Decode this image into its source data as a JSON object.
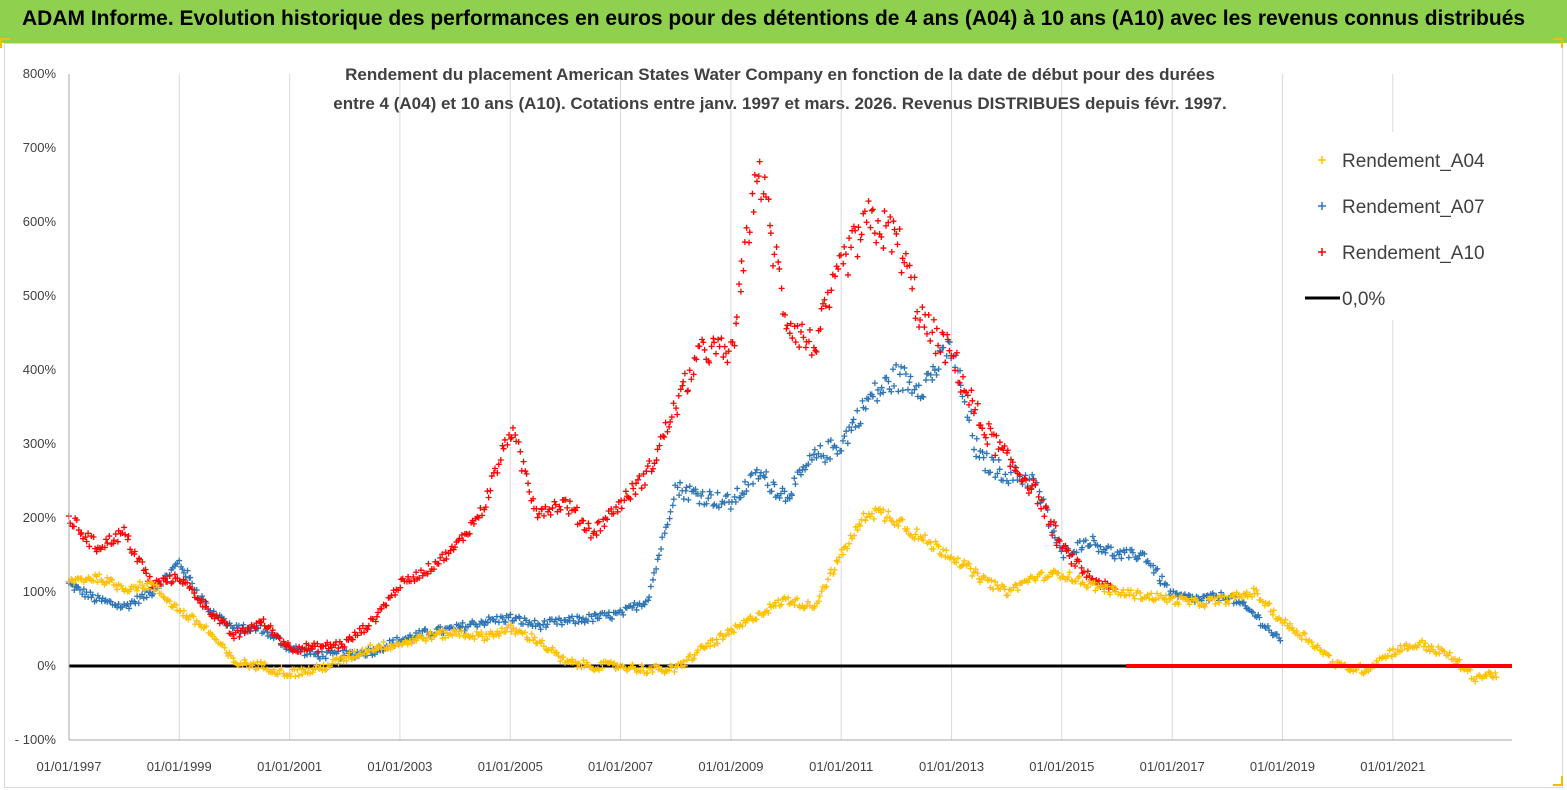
{
  "banner": {
    "title": "ADAM Informe. Evolution historique des performances en euros pour des détentions de 4 ans (A04) à 10 ans (A10) avec les revenus connus distribués"
  },
  "chart_data": {
    "type": "scatter",
    "title_line1": "Rendement du placement American States Water Company en fonction de la date de début pour des durées",
    "title_line2": "entre 4 (A04) et 10 ans (A10). Cotations entre janv. 1997 et mars. 2026. Revenus DISTRIBUES depuis févr. 1997.",
    "xlabel": "",
    "ylabel": "",
    "x_range": [
      "01/01/1997",
      "2023-03-01"
    ],
    "ylim": [
      -100,
      800
    ],
    "y_ticks": [
      -100,
      0,
      100,
      200,
      300,
      400,
      500,
      600,
      700,
      800
    ],
    "y_tick_labels": [
      "- 100%",
      "0%",
      "100%",
      "200%",
      "300%",
      "400%",
      "500%",
      "600%",
      "700%",
      "800%"
    ],
    "x_ticks": [
      "1997-01-01",
      "1999-01-01",
      "2001-01-01",
      "2003-01-01",
      "2005-01-01",
      "2007-01-01",
      "2009-01-01",
      "2011-01-01",
      "2013-01-01",
      "2015-01-01",
      "2017-01-01",
      "2019-01-01",
      "2021-01-01"
    ],
    "x_tick_labels": [
      "01/01/1997",
      "01/01/1999",
      "01/01/2001",
      "01/01/2003",
      "01/01/2005",
      "01/01/2007",
      "01/01/2009",
      "01/01/2011",
      "01/01/2013",
      "01/01/2015",
      "01/01/2017",
      "01/01/2019",
      "01/01/2021"
    ],
    "grid": "vertical",
    "legend_position": "top-right",
    "series": [
      {
        "name": "Rendement_A04",
        "color": "#ffc000",
        "marker": "plus",
        "x": [
          "1997-01-01",
          "1997-07-01",
          "1998-01-01",
          "1998-07-01",
          "1999-01-01",
          "1999-07-01",
          "2000-01-01",
          "2000-07-01",
          "2001-01-01",
          "2001-07-01",
          "2002-01-01",
          "2002-07-01",
          "2003-01-01",
          "2003-07-01",
          "2004-01-01",
          "2004-07-01",
          "2005-01-01",
          "2005-07-01",
          "2006-01-01",
          "2006-07-01",
          "2007-01-01",
          "2007-07-01",
          "2008-01-01",
          "2008-07-01",
          "2009-01-01",
          "2009-07-01",
          "2010-01-01",
          "2010-07-01",
          "2011-01-01",
          "2011-07-01",
          "2012-01-01",
          "2012-07-01",
          "2013-01-01",
          "2013-07-01",
          "2014-01-01",
          "2014-07-01",
          "2015-01-01",
          "2015-07-01",
          "2016-01-01",
          "2016-07-01",
          "2017-01-01",
          "2017-07-01",
          "2018-01-01",
          "2018-07-01",
          "2019-01-01",
          "2019-07-01",
          "2020-01-01",
          "2020-07-01",
          "2021-01-01",
          "2021-07-01",
          "2022-01-01",
          "2022-07-01",
          "2022-12-01"
        ],
        "y": [
          115,
          120,
          105,
          110,
          75,
          50,
          5,
          0,
          -10,
          -5,
          10,
          25,
          30,
          40,
          45,
          40,
          50,
          35,
          5,
          0,
          0,
          -5,
          -5,
          25,
          45,
          70,
          90,
          80,
          150,
          210,
          200,
          170,
          150,
          120,
          100,
          120,
          125,
          110,
          100,
          95,
          90,
          85,
          90,
          100,
          60,
          35,
          0,
          -5,
          20,
          30,
          15,
          -15,
          -10
        ]
      },
      {
        "name": "Rendement_A07",
        "color": "#2e75b6",
        "marker": "plus",
        "x": [
          "1997-01-01",
          "1997-07-01",
          "1998-01-01",
          "1998-07-01",
          "1999-01-01",
          "1999-07-01",
          "2000-01-01",
          "2000-07-01",
          "2001-01-01",
          "2001-07-01",
          "2002-01-01",
          "2002-07-01",
          "2003-01-01",
          "2003-07-01",
          "2004-01-01",
          "2004-07-01",
          "2005-01-01",
          "2005-07-01",
          "2006-01-01",
          "2006-07-01",
          "2007-01-01",
          "2007-07-01",
          "2008-01-01",
          "2008-07-01",
          "2009-01-01",
          "2009-07-01",
          "2010-01-01",
          "2010-07-01",
          "2011-01-01",
          "2011-07-01",
          "2012-01-01",
          "2012-07-01",
          "2013-01-01",
          "2013-07-01",
          "2014-01-01",
          "2014-07-01",
          "2015-01-01",
          "2015-07-01",
          "2016-01-01",
          "2016-07-01",
          "2017-01-01",
          "2017-07-01",
          "2018-01-01",
          "2018-07-01",
          "2019-01-01"
        ],
        "y": [
          110,
          90,
          80,
          100,
          140,
          80,
          50,
          50,
          25,
          15,
          15,
          20,
          35,
          45,
          50,
          60,
          65,
          55,
          60,
          65,
          70,
          90,
          240,
          230,
          220,
          260,
          230,
          280,
          300,
          360,
          390,
          380,
          430,
          280,
          260,
          250,
          150,
          170,
          150,
          150,
          95,
          90,
          95,
          70,
          30
        ]
      },
      {
        "name": "Rendement_A10",
        "color": "#ff0000",
        "marker": "plus",
        "x": [
          "1997-01-01",
          "1997-07-01",
          "1998-01-01",
          "1998-07-01",
          "1999-01-01",
          "1999-07-01",
          "2000-01-01",
          "2000-07-01",
          "2001-01-01",
          "2001-07-01",
          "2002-01-01",
          "2002-07-01",
          "2003-01-01",
          "2003-07-01",
          "2004-01-01",
          "2004-07-01",
          "2005-01-01",
          "2005-07-01",
          "2006-01-01",
          "2006-07-01",
          "2007-01-01",
          "2007-07-01",
          "2008-01-01",
          "2008-07-01",
          "2009-01-01",
          "2009-07-01",
          "2010-01-01",
          "2010-07-01",
          "2011-01-01",
          "2011-07-01",
          "2012-01-01",
          "2012-07-01",
          "2013-01-01",
          "2013-07-01",
          "2014-01-01",
          "2014-07-01",
          "2015-01-01",
          "2015-07-01",
          "2016-01-01"
        ],
        "y": [
          200,
          160,
          180,
          110,
          120,
          80,
          40,
          60,
          25,
          25,
          30,
          60,
          110,
          130,
          160,
          210,
          320,
          210,
          220,
          180,
          220,
          260,
          350,
          430,
          420,
          680,
          470,
          430,
          540,
          600,
          580,
          460,
          420,
          330,
          280,
          240,
          160,
          120,
          100
        ]
      },
      {
        "name": "0,0%",
        "color": "#000000",
        "marker": "line",
        "x": [
          "1997-01-01",
          "2023-03-01"
        ],
        "y": [
          0,
          0
        ]
      }
    ],
    "zero_overlay": {
      "color": "#ff0000",
      "from": "2016-03-01",
      "to": "2023-03-01",
      "value": 0
    }
  }
}
